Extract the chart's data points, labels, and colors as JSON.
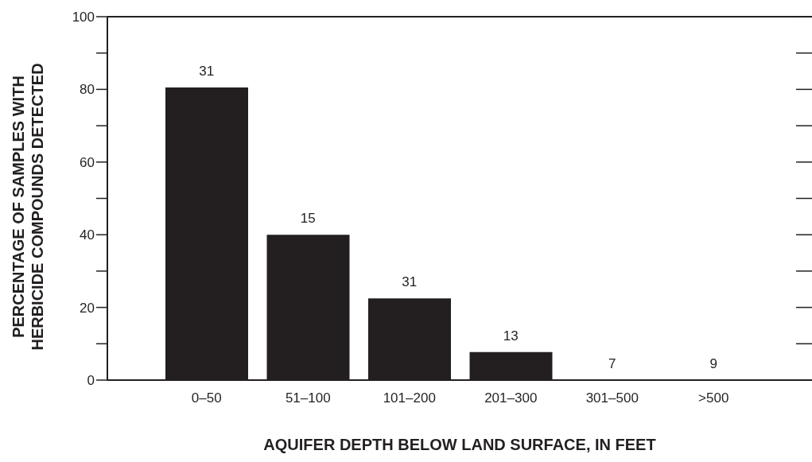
{
  "chart_data": {
    "type": "bar",
    "xlabel": "AQUIFER DEPTH BELOW LAND SURFACE, IN FEET",
    "ylabel": "PERCENTAGE OF SAMPLES WITH\nHERBICIDE COMPOUNDS DETECTED",
    "categories": [
      "0–50",
      "51–100",
      "101–200",
      "201–300",
      "301–500",
      ">500"
    ],
    "values": [
      80.5,
      40,
      22.5,
      7.7,
      0,
      0
    ],
    "annotations": [
      {
        "text": "31",
        "x": "0–50",
        "y": 80.5
      },
      {
        "text": "15",
        "x": "51–100",
        "y": 40
      },
      {
        "text": "31",
        "x": "101–200",
        "y": 22.5
      },
      {
        "text": "13",
        "x": "201–300",
        "y": 7.7
      },
      {
        "text": "7",
        "x": "301–500",
        "y": 0
      },
      {
        "text": "9",
        "x": ">500",
        "y": 0
      }
    ],
    "color": "#231f20",
    "ylim": [
      0,
      100
    ],
    "yticks": [
      0,
      {
        "value": 10,
        "label": null
      },
      20,
      {
        "value": 30,
        "label": null
      },
      40,
      {
        "value": 50,
        "label": null
      },
      60,
      {
        "value": 70,
        "label": null
      },
      80,
      {
        "value": 90,
        "label": null
      },
      100
    ],
    "grid": false
  }
}
